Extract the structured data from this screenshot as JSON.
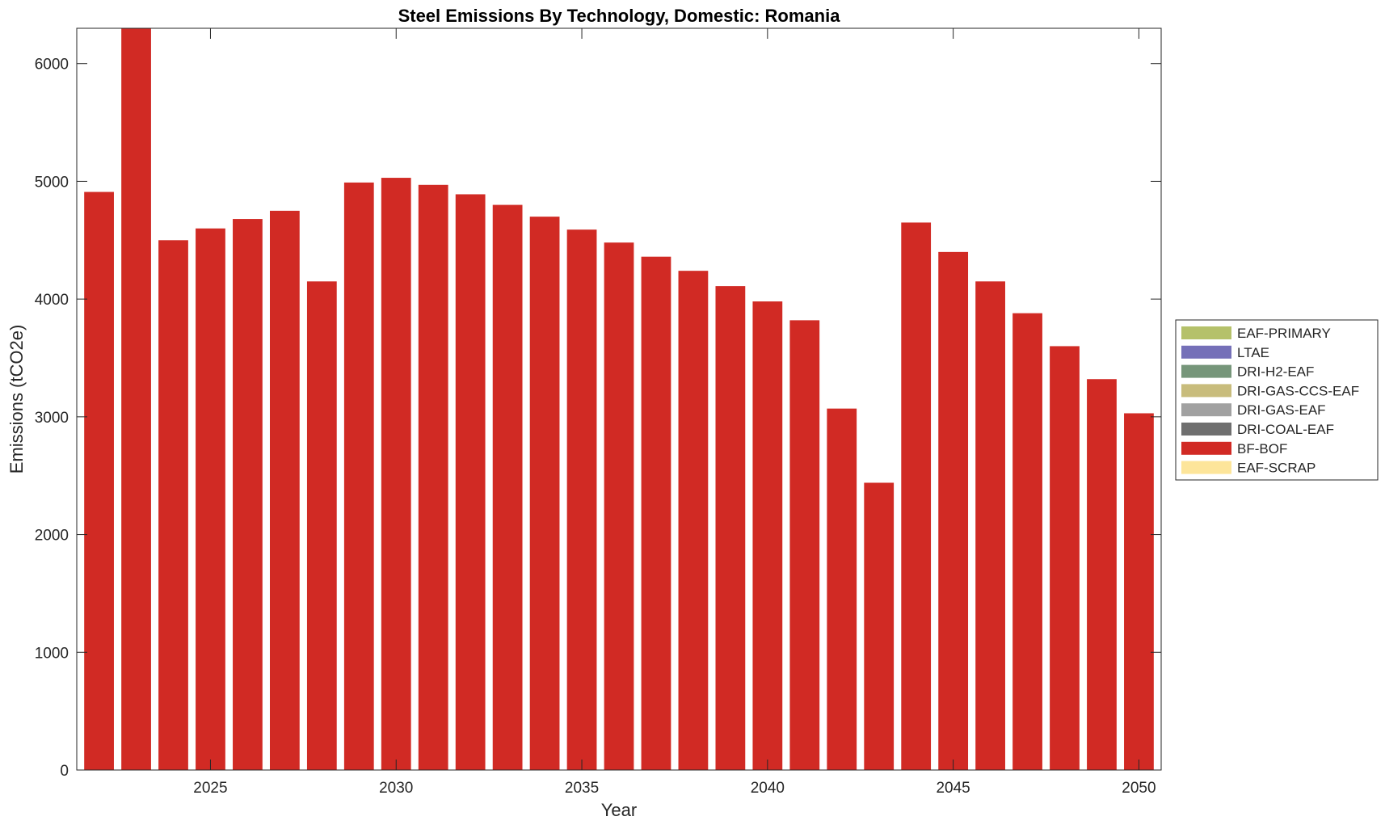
{
  "chart_data": {
    "type": "bar",
    "stacked": true,
    "title": "Steel Emissions By Technology, Domestic: Romania",
    "xlabel": "Year",
    "ylabel": "Emissions (tCO2e)",
    "xlim": [
      2021.4,
      2050.6
    ],
    "ylim": [
      0,
      6300
    ],
    "xticks": [
      2025,
      2030,
      2035,
      2040,
      2045,
      2050
    ],
    "yticks": [
      0,
      1000,
      2000,
      3000,
      4000,
      5000,
      6000
    ],
    "grid": false,
    "legend_position": "right",
    "categories": [
      2022,
      2023,
      2024,
      2025,
      2026,
      2027,
      2028,
      2029,
      2030,
      2031,
      2032,
      2033,
      2034,
      2035,
      2036,
      2037,
      2038,
      2039,
      2040,
      2041,
      2042,
      2043,
      2044,
      2045,
      2046,
      2047,
      2048,
      2049,
      2050
    ],
    "series": [
      {
        "name": "EAF-PRIMARY",
        "color": "#b5c16a",
        "values": [
          0,
          0,
          0,
          0,
          0,
          0,
          0,
          0,
          0,
          0,
          0,
          0,
          0,
          0,
          0,
          0,
          0,
          0,
          0,
          0,
          0,
          0,
          0,
          0,
          0,
          0,
          0,
          0,
          0
        ]
      },
      {
        "name": "LTAE",
        "color": "#7570b8",
        "values": [
          0,
          0,
          0,
          0,
          0,
          0,
          0,
          0,
          0,
          0,
          0,
          0,
          0,
          0,
          0,
          0,
          0,
          0,
          0,
          0,
          0,
          0,
          0,
          0,
          0,
          0,
          0,
          0,
          0
        ]
      },
      {
        "name": "DRI-H2-EAF",
        "color": "#76967a",
        "values": [
          0,
          0,
          0,
          0,
          0,
          0,
          0,
          0,
          0,
          0,
          0,
          0,
          0,
          0,
          0,
          0,
          0,
          0,
          0,
          0,
          0,
          0,
          0,
          0,
          0,
          0,
          0,
          0,
          0
        ]
      },
      {
        "name": "DRI-GAS-CCS-EAF",
        "color": "#c8bc7c",
        "values": [
          0,
          0,
          0,
          0,
          0,
          0,
          0,
          0,
          0,
          0,
          0,
          0,
          0,
          0,
          0,
          0,
          0,
          0,
          0,
          0,
          0,
          0,
          0,
          0,
          0,
          0,
          0,
          0,
          0
        ]
      },
      {
        "name": "DRI-GAS-EAF",
        "color": "#a1a1a1",
        "values": [
          0,
          0,
          0,
          0,
          0,
          0,
          0,
          0,
          0,
          0,
          0,
          0,
          0,
          0,
          0,
          0,
          0,
          0,
          0,
          0,
          0,
          0,
          0,
          0,
          0,
          0,
          0,
          0,
          0
        ]
      },
      {
        "name": "DRI-COAL-EAF",
        "color": "#6f6f6f",
        "values": [
          0,
          0,
          0,
          0,
          0,
          0,
          0,
          0,
          0,
          0,
          0,
          0,
          0,
          0,
          0,
          0,
          0,
          0,
          0,
          0,
          0,
          0,
          0,
          0,
          0,
          0,
          0,
          0,
          0
        ]
      },
      {
        "name": "BF-BOF",
        "color": "#d12a24",
        "values": [
          4910,
          6300,
          4500,
          4600,
          4680,
          4750,
          4150,
          4990,
          5030,
          4970,
          4890,
          4800,
          4700,
          4590,
          4480,
          4360,
          4240,
          4110,
          3980,
          3820,
          3070,
          2440,
          4650,
          4400,
          4150,
          3880,
          3600,
          3320,
          3030
        ]
      },
      {
        "name": "EAF-SCRAP",
        "color": "#fde59a",
        "values": [
          0,
          0,
          0,
          0,
          0,
          0,
          0,
          0,
          0,
          0,
          0,
          0,
          0,
          0,
          0,
          0,
          0,
          0,
          0,
          0,
          0,
          0,
          0,
          0,
          0,
          0,
          0,
          0,
          0
        ]
      }
    ]
  }
}
